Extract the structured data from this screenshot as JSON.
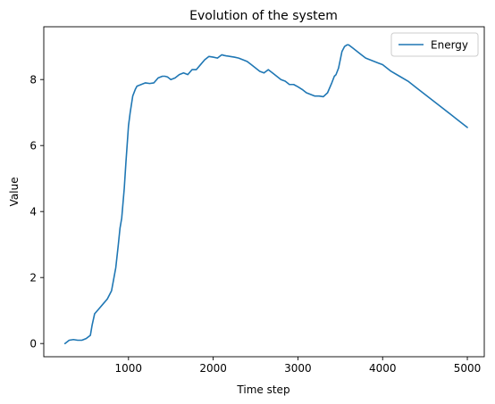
{
  "chart_data": {
    "type": "line",
    "title": "Evolution of the system",
    "xlabel": "Time step",
    "ylabel": "Value",
    "xlim": [
      0,
      5200
    ],
    "ylim": [
      -0.4,
      9.6
    ],
    "xticks": [
      1000,
      2000,
      3000,
      4000,
      5000
    ],
    "yticks": [
      0,
      2,
      4,
      6,
      8
    ],
    "grid": false,
    "legend": "top-right",
    "series": [
      {
        "name": "Energy",
        "color": "#1f77b4",
        "x": [
          250,
          300,
          350,
          400,
          450,
          500,
          550,
          570,
          600,
          650,
          700,
          750,
          780,
          800,
          850,
          880,
          900,
          920,
          950,
          970,
          1000,
          1020,
          1050,
          1080,
          1100,
          1150,
          1200,
          1250,
          1300,
          1350,
          1400,
          1430,
          1460,
          1500,
          1550,
          1600,
          1650,
          1700,
          1750,
          1800,
          1850,
          1900,
          1950,
          2000,
          2050,
          2100,
          2130,
          2150,
          2200,
          2250,
          2300,
          2350,
          2400,
          2450,
          2500,
          2550,
          2600,
          2650,
          2700,
          2750,
          2800,
          2850,
          2900,
          2950,
          3000,
          3050,
          3100,
          3150,
          3200,
          3250,
          3300,
          3350,
          3400,
          3430,
          3450,
          3480,
          3500,
          3520,
          3550,
          3580,
          3600,
          3650,
          3700,
          3750,
          3800,
          3850,
          3900,
          3950,
          4000,
          4050,
          4100,
          4200,
          4300,
          4400,
          4500,
          4600,
          4700,
          4800,
          4900,
          5000
        ],
        "values": [
          0.0,
          0.1,
          0.12,
          0.1,
          0.1,
          0.15,
          0.25,
          0.55,
          0.9,
          1.05,
          1.2,
          1.35,
          1.5,
          1.6,
          2.3,
          3.0,
          3.5,
          3.8,
          4.7,
          5.5,
          6.6,
          7.0,
          7.5,
          7.7,
          7.8,
          7.85,
          7.9,
          7.88,
          7.9,
          8.05,
          8.1,
          8.1,
          8.08,
          8.0,
          8.05,
          8.15,
          8.2,
          8.15,
          8.3,
          8.3,
          8.45,
          8.6,
          8.7,
          8.68,
          8.65,
          8.75,
          8.73,
          8.72,
          8.7,
          8.68,
          8.65,
          8.6,
          8.55,
          8.45,
          8.35,
          8.25,
          8.2,
          8.3,
          8.2,
          8.1,
          8.0,
          7.95,
          7.85,
          7.85,
          7.78,
          7.7,
          7.6,
          7.55,
          7.5,
          7.5,
          7.48,
          7.6,
          7.9,
          8.1,
          8.15,
          8.35,
          8.6,
          8.85,
          9.0,
          9.05,
          9.05,
          8.95,
          8.85,
          8.75,
          8.65,
          8.6,
          8.55,
          8.5,
          8.45,
          8.35,
          8.25,
          8.1,
          7.95,
          7.75,
          7.55,
          7.35,
          7.15,
          6.95,
          6.75,
          6.55
        ]
      }
    ]
  }
}
